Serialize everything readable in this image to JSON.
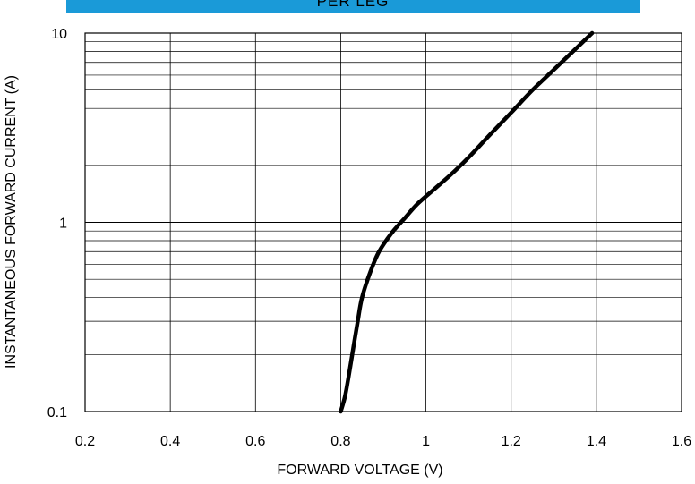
{
  "chart_data": {
    "type": "line",
    "title": "PER LEG",
    "xlabel": "FORWARD VOLTAGE (V)",
    "ylabel": "INSTANTANEOUS FORWARD  CURRENT (A)",
    "xlim": [
      0.2,
      1.6
    ],
    "ylim": [
      0.1,
      10
    ],
    "yscale": "log",
    "grid": true,
    "x_ticks": [
      "0.2",
      "0.4",
      "0.6",
      "0.8",
      "1",
      "1.2",
      "1.4",
      "1.6"
    ],
    "y_ticks": [
      "0.1",
      "1",
      "10"
    ],
    "series": [
      {
        "x": [
          0.8,
          0.81,
          0.82,
          0.83,
          0.84,
          0.85,
          0.87,
          0.89,
          0.92,
          0.95,
          0.98,
          1.02,
          1.06,
          1.1,
          1.15,
          1.2,
          1.25,
          1.3,
          1.35,
          1.39
        ],
        "y": [
          0.1,
          0.12,
          0.16,
          0.22,
          0.3,
          0.4,
          0.55,
          0.7,
          0.88,
          1.05,
          1.25,
          1.5,
          1.8,
          2.2,
          2.9,
          3.8,
          5.0,
          6.4,
          8.2,
          10.0
        ]
      }
    ]
  },
  "colors": {
    "banner": "#1a9ad8",
    "banner_text": "#ffffff",
    "series": "#000000",
    "grid": "#000000"
  }
}
